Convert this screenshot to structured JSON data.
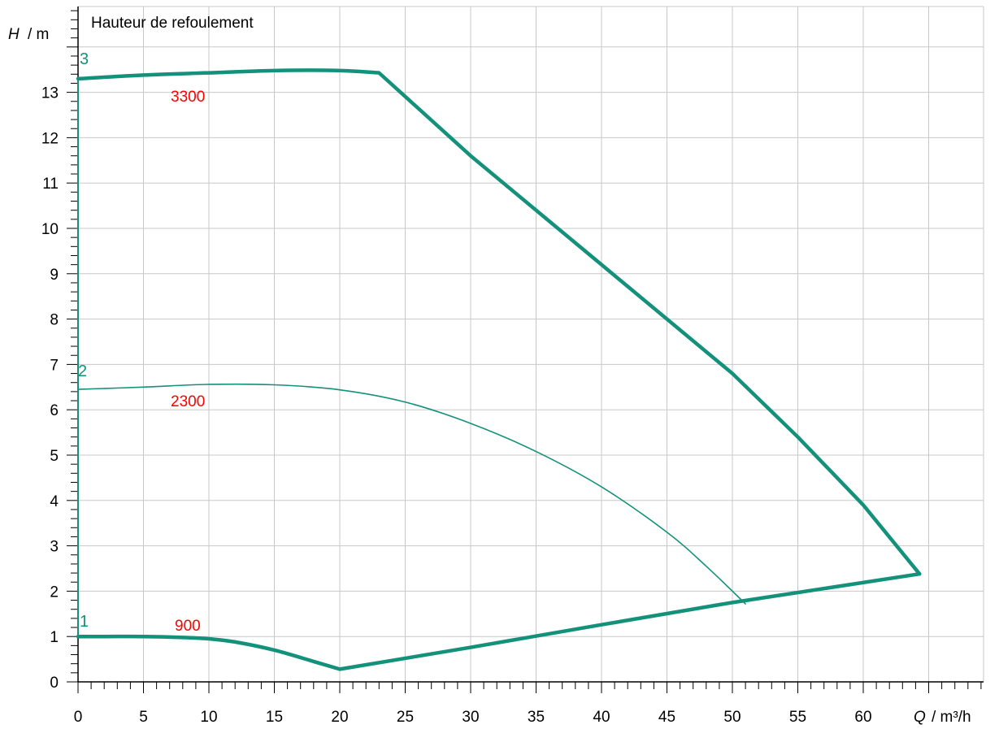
{
  "chart_data": {
    "type": "line",
    "title": "Hauteur de refoulement",
    "ylabel_symbol": "H",
    "ylabel_unit": "/ m",
    "xlabel_symbol": "Q",
    "xlabel_unit": "/ m³/h",
    "xlim": [
      0,
      68.5
    ],
    "ylim": [
      0,
      14.8
    ],
    "x_ticks": [
      "0",
      "5",
      "10",
      "15",
      "20",
      "25",
      "30",
      "35",
      "40",
      "45",
      "50",
      "55",
      "60"
    ],
    "x_tick_values": [
      0,
      5,
      10,
      15,
      20,
      25,
      30,
      35,
      40,
      45,
      50,
      55,
      60
    ],
    "y_ticks": [
      "0",
      "1",
      "2",
      "3",
      "4",
      "5",
      "6",
      "7",
      "8",
      "9",
      "10",
      "11",
      "12",
      "13"
    ],
    "y_tick_values": [
      0,
      1,
      2,
      3,
      4,
      5,
      6,
      7,
      8,
      9,
      10,
      11,
      12,
      13
    ],
    "grid": true,
    "colors": {
      "curve": "#13917a",
      "label": "#ff0000",
      "grid": "#c8c8c8"
    },
    "series": [
      {
        "curve_number": "1",
        "speed_label": "900",
        "x": [
          0,
          2,
          5,
          8,
          10,
          12,
          15,
          18,
          20
        ],
        "y": [
          1.0,
          1.0,
          1.0,
          0.98,
          0.95,
          0.88,
          0.7,
          0.45,
          0.28
        ]
      },
      {
        "curve_number": "2",
        "speed_label": "2300",
        "x": [
          0,
          5,
          10,
          15,
          20,
          25,
          30,
          35,
          40,
          45,
          48,
          51
        ],
        "y": [
          6.45,
          6.5,
          6.56,
          6.55,
          6.44,
          6.17,
          5.7,
          5.08,
          4.3,
          3.3,
          2.55,
          1.72
        ]
      },
      {
        "curve_number": "3",
        "speed_label": "3300",
        "x": [
          0,
          5,
          10,
          15,
          20,
          23,
          30,
          40,
          50,
          55,
          60,
          64.3
        ],
        "y": [
          13.3,
          13.38,
          13.43,
          13.48,
          13.48,
          13.43,
          11.6,
          9.2,
          6.8,
          5.4,
          3.9,
          2.38
        ]
      },
      {
        "curve_number": "",
        "speed_label": "",
        "x": [
          20,
          30,
          40,
          50,
          64.3
        ],
        "y": [
          0.28,
          0.76,
          1.26,
          1.75,
          2.38
        ]
      },
      {
        "curve_number": "",
        "speed_label": "",
        "x": [
          0,
          0
        ],
        "y": [
          1.0,
          13.3
        ]
      }
    ]
  }
}
